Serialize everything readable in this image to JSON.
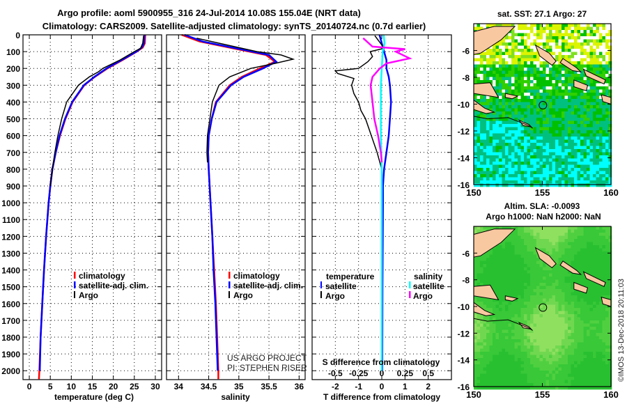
{
  "title_line1": "Argo profile: aoml 5900955_316 24-Jul-2014 10.08S 155.04E (NRT data)",
  "title_line2": "Climatology: CARS2009. Satellite-adjusted climatology: synTS_20140724.nc (0.7d earlier)",
  "credit": "US ARGO PROJECT",
  "pi": "PI: STEPHEN RISER",
  "watermark": "©IMOS 13-Dec-2018 20:11:03",
  "colors": {
    "climatology": "#ff0000",
    "satellite": "#0000ff",
    "argo": "#000000",
    "sal_satellite": "#00ffff",
    "sal_argo": "#ff00ff",
    "land": "#f8c8a0"
  },
  "chart_data": [
    {
      "type": "line",
      "id": "temperature",
      "xlabel": "temperature (deg C)",
      "ylabel": "depth",
      "xlim": [
        -1.5,
        31.5
      ],
      "ylim": [
        0,
        2053
      ],
      "xticks": [
        0,
        5,
        10,
        15,
        20,
        25,
        30
      ],
      "yticks": [
        0,
        100,
        200,
        300,
        400,
        500,
        600,
        700,
        800,
        900,
        1000,
        1100,
        1200,
        1300,
        1400,
        1500,
        1600,
        1700,
        1800,
        1900,
        2000
      ],
      "grid": true,
      "legend": [
        "climatology",
        "satellite-adj. clim.",
        "Argo"
      ],
      "series": [
        {
          "name": "climatology",
          "color": "#ff0000",
          "depth": [
            0,
            50,
            75,
            100,
            150,
            200,
            250,
            300,
            400,
            500,
            600,
            700,
            800,
            900,
            1000,
            1200,
            1400,
            1600,
            1800,
            2000,
            2050
          ],
          "values": [
            27.6,
            27.5,
            27,
            25.6,
            22.2,
            18.6,
            15.6,
            13.1,
            10.3,
            8.6,
            7.3,
            6.3,
            5.5,
            5,
            4.6,
            4,
            3.5,
            3.1,
            2.7,
            2.4,
            2.3
          ]
        },
        {
          "name": "satellite-adj. clim.",
          "color": "#0000ff",
          "depth": [
            0,
            50,
            75,
            100,
            150,
            200,
            250,
            300,
            400,
            500,
            600,
            700,
            800,
            900,
            1000,
            1200,
            1400,
            1600,
            1800,
            2000
          ],
          "values": [
            27.4,
            27.3,
            26.8,
            25.5,
            22,
            18.4,
            15.5,
            13,
            10.2,
            8.5,
            7.2,
            6.3,
            5.5,
            5,
            4.6,
            4,
            3.5,
            3.1,
            2.7,
            2.5
          ]
        },
        {
          "name": "Argo",
          "color": "#000000",
          "depth": [
            5,
            50,
            80,
            100,
            150,
            200,
            220,
            250,
            300,
            400,
            500,
            600,
            700,
            800,
            900
          ],
          "values": [
            27.2,
            27,
            26.5,
            25,
            21.6,
            17.5,
            16.5,
            14.3,
            11.7,
            8.9,
            7.7,
            6.8,
            6.1,
            5.5,
            5.0
          ]
        }
      ]
    },
    {
      "type": "line",
      "id": "salinity",
      "xlabel": "salinity",
      "ylabel": "depth",
      "xlim": [
        33.8,
        36.1
      ],
      "ylim": [
        0,
        2053
      ],
      "xticks": [
        34,
        34.5,
        35,
        35.5,
        36
      ],
      "yticks": [
        0,
        100,
        200,
        300,
        400,
        500,
        600,
        700,
        800,
        900,
        1000,
        1100,
        1200,
        1300,
        1400,
        1500,
        1600,
        1700,
        1800,
        1900,
        2000
      ],
      "grid": true,
      "legend": [
        "climatology",
        "satellite-adj. clim.",
        "Argo"
      ],
      "series": [
        {
          "name": "climatology",
          "color": "#ff0000",
          "depth": [
            0,
            40,
            80,
            120,
            160,
            200,
            250,
            300,
            400,
            500,
            600,
            700,
            800,
            1000,
            1200,
            1400,
            1600,
            1800,
            2000,
            2050
          ],
          "values": [
            34.05,
            34.35,
            34.9,
            35.45,
            35.6,
            35.35,
            35.05,
            34.85,
            34.62,
            34.55,
            34.5,
            34.49,
            34.5,
            34.53,
            34.56,
            34.59,
            34.62,
            34.64,
            34.66,
            34.66
          ]
        },
        {
          "name": "satellite-adj. clim.",
          "color": "#0000ff",
          "depth": [
            0,
            40,
            80,
            120,
            160,
            200,
            250,
            300,
            400,
            500,
            600,
            700,
            800,
            1000,
            1200,
            1400,
            1600,
            1800,
            2000
          ],
          "values": [
            34.1,
            34.4,
            34.95,
            35.5,
            35.62,
            35.4,
            35.08,
            34.87,
            34.63,
            34.55,
            34.5,
            34.49,
            34.5,
            34.53,
            34.56,
            34.58,
            34.61,
            34.63,
            34.65
          ]
        },
        {
          "name": "Argo",
          "color": "#000000",
          "depth": [
            20,
            60,
            100,
            120,
            145,
            170,
            200,
            250,
            300,
            400,
            500,
            600,
            700,
            760
          ],
          "values": [
            34.3,
            34.8,
            35.3,
            35.7,
            35.9,
            35.6,
            35.2,
            34.85,
            34.67,
            34.56,
            34.52,
            34.48,
            34.47,
            34.48
          ]
        }
      ]
    },
    {
      "type": "line",
      "id": "difference",
      "xlabel": "T difference from climatology",
      "x2label": "S difference from climatology",
      "xlim": [
        -3,
        3
      ],
      "ylim": [
        0,
        2053
      ],
      "xticks": [
        -2,
        -1,
        0,
        1,
        2
      ],
      "x2ticks": [
        -0.5,
        -0.25,
        0,
        0.25,
        0.5
      ],
      "x2scale": 4,
      "yticks": [
        0,
        100,
        200,
        300,
        400,
        500,
        600,
        700,
        800,
        900,
        1000,
        1100,
        1200,
        1300,
        1400,
        1500,
        1600,
        1700,
        1800,
        1900,
        2000
      ],
      "grid": true,
      "legend": {
        "temperature_title": "temperature",
        "salinity_title": "salinity",
        "satellite": "satellite",
        "argo": "Argo"
      },
      "series": [
        {
          "name": "T satellite",
          "color": "#0000ff",
          "units": "T",
          "depth": [
            0,
            50,
            100,
            150,
            200,
            250,
            300,
            400,
            500,
            600,
            700,
            800,
            900,
            1000,
            1500,
            2000
          ],
          "values": [
            -0.1,
            0,
            0.1,
            0.2,
            0.2,
            0.3,
            0.35,
            0.4,
            0.35,
            0.3,
            0.2,
            0.1,
            0.05,
            0.05,
            0.03,
            0.02
          ]
        },
        {
          "name": "T Argo",
          "color": "#000000",
          "units": "T",
          "depth": [
            5,
            60,
            80,
            100,
            130,
            160,
            200,
            215,
            230,
            260,
            300,
            350,
            400,
            450,
            500,
            600,
            700,
            800,
            870
          ],
          "values": [
            -0.3,
            0,
            0.1,
            -0.5,
            -0.4,
            -0.6,
            -1.0,
            -2.0,
            -1.9,
            -1.2,
            -1.3,
            -1.2,
            -1.0,
            -0.9,
            -0.7,
            -0.45,
            -0.2,
            0,
            0
          ]
        },
        {
          "name": "S satellite",
          "color": "#00ffff",
          "units": "S",
          "depth": [
            0,
            50,
            100,
            200,
            300,
            400,
            600,
            800,
            1000,
            1500,
            2000
          ],
          "values": [
            0.02,
            0.03,
            0.01,
            0.0,
            -0.01,
            -0.01,
            -0.01,
            0,
            0,
            0,
            0
          ]
        },
        {
          "name": "S Argo",
          "color": "#ff00ff",
          "units": "S",
          "depth": [
            20,
            70,
            85,
            100,
            140,
            170,
            200,
            250,
            300,
            400,
            500,
            600,
            700,
            760
          ],
          "values": [
            -0.2,
            -0.1,
            0.25,
            0.15,
            0.3,
            0.05,
            -0.02,
            -0.1,
            -0.12,
            -0.1,
            -0.08,
            -0.04,
            -0.01,
            0
          ]
        }
      ]
    }
  ],
  "maps": [
    {
      "id": "sst",
      "title1": "sat. SST: 27.1 Argo: 27",
      "title2": "",
      "lon_ticks": [
        150,
        155,
        160
      ],
      "lat_ticks": [
        -6,
        -8,
        -10,
        -12,
        -14,
        -16
      ],
      "lon": [
        150,
        160
      ],
      "lat": [
        -16,
        -4
      ],
      "profile": {
        "lon": 155.04,
        "lat": -10.08
      },
      "palette": [
        "#ffffff",
        "#dcf400",
        "#80e020",
        "#30d000",
        "#00c000",
        "#00c080",
        "#00ffff",
        "#0000ff",
        "#ff0000"
      ]
    },
    {
      "id": "sla",
      "title1": "Altim. SLA: -0.0093",
      "title2": "Argo h1000: NaN h2000: NaN",
      "lon_ticks": [
        150,
        155,
        160
      ],
      "lat_ticks": [
        -6,
        -8,
        -10,
        -12,
        -14,
        -16
      ],
      "lon": [
        150,
        160
      ],
      "lat": [
        -16,
        -4
      ],
      "profile": {
        "lon": 155.04,
        "lat": -10.08
      },
      "palette": [
        "#28c030",
        "#38c838",
        "#50d040",
        "#70d850",
        "#90e060"
      ]
    }
  ]
}
